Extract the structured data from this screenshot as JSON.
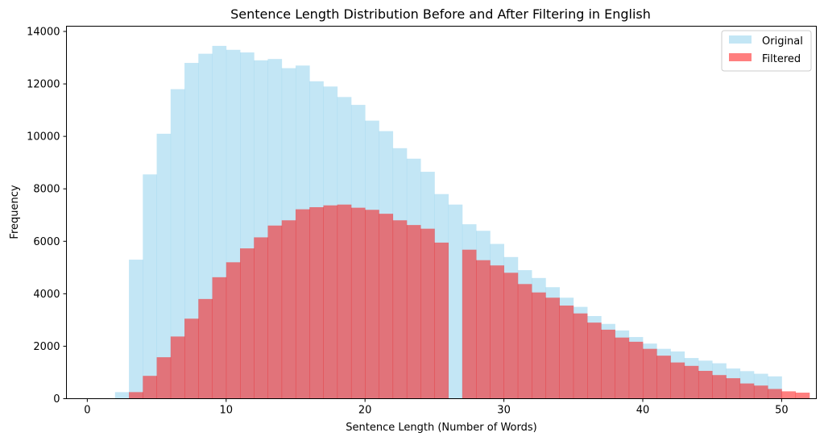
{
  "chart_data": {
    "type": "bar",
    "title": "Sentence Length Distribution Before and After Filtering in English",
    "xlabel": "Sentence Length (Number of Words)",
    "ylabel": "Frequency",
    "xlim": [
      -1.5,
      52.5
    ],
    "ylim": [
      0,
      14200
    ],
    "xticks": [
      0,
      10,
      20,
      30,
      40,
      50
    ],
    "yticks": [
      0,
      2000,
      4000,
      6000,
      8000,
      10000,
      12000,
      14000
    ],
    "bin_edges_start": 0,
    "bin_width": 1,
    "grid": false,
    "legend_position": "top-right",
    "series": [
      {
        "name": "Original",
        "color": "#87ceeb",
        "opacity": 0.5,
        "values": [
          0,
          0,
          250,
          5300,
          8550,
          10100,
          11800,
          12800,
          13150,
          13450,
          13300,
          13200,
          12900,
          12950,
          12600,
          12700,
          12100,
          11900,
          11500,
          11200,
          10600,
          10200,
          9550,
          9150,
          8650,
          7800,
          7400,
          6650,
          6400,
          5900,
          5400,
          4900,
          4600,
          4250,
          3850,
          3500,
          3150,
          2850,
          2600,
          2350,
          2100,
          1900,
          1800,
          1550,
          1450,
          1350,
          1150,
          1050,
          950,
          850
        ]
      },
      {
        "name": "Filtered",
        "color": "#ff0000",
        "opacity": 0.5,
        "values": [
          0,
          0,
          0,
          250,
          870,
          1580,
          2370,
          3050,
          3800,
          4630,
          5200,
          5730,
          6150,
          6600,
          6800,
          7220,
          7300,
          7370,
          7400,
          7280,
          7200,
          7050,
          6800,
          6620,
          6480,
          5950,
          0,
          5680,
          5280,
          5080,
          4800,
          4370,
          4050,
          3850,
          3550,
          3250,
          2900,
          2630,
          2330,
          2170,
          1900,
          1640,
          1380,
          1250,
          1060,
          900,
          780,
          580,
          500,
          370,
          280,
          230
        ]
      }
    ]
  }
}
